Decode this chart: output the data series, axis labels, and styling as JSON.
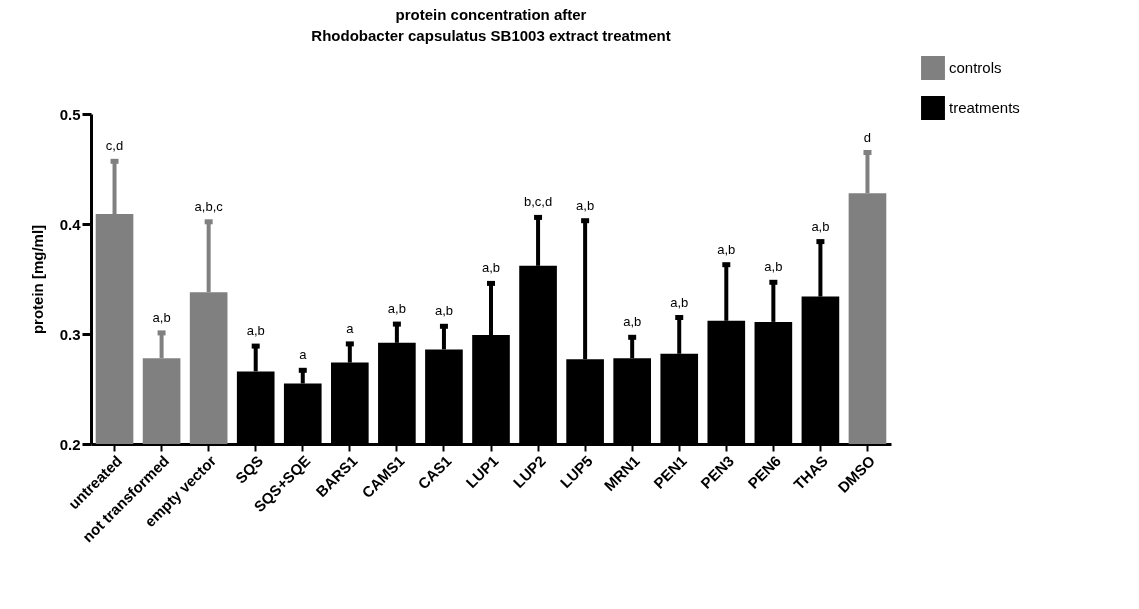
{
  "chart_data": {
    "type": "bar",
    "title": "protein concentration after",
    "subtitle": "Rhodobacter capsulatus SB1003 extract treatment",
    "ylabel": "protein [mg/ml]",
    "categories": [
      "untreated",
      "not transformed",
      "empty vector",
      "SQS",
      "SQS+SQE",
      "BARS1",
      "CAMS1",
      "CAS1",
      "LUP1",
      "LUP2",
      "LUP5",
      "MRN1",
      "PEN1",
      "PEN3",
      "PEN6",
      "THAS",
      "DMSO"
    ],
    "series": [
      {
        "name": "controls",
        "color": "#808080",
        "values": [
          0.409,
          0.278,
          0.338,
          null,
          null,
          null,
          null,
          null,
          null,
          null,
          null,
          null,
          null,
          null,
          null,
          null,
          0.428
        ],
        "errors": [
          [
            0.409,
            0.457
          ],
          [
            0.278,
            0.301
          ],
          [
            0.338,
            0.402
          ],
          null,
          null,
          null,
          null,
          null,
          null,
          null,
          null,
          null,
          null,
          null,
          null,
          null,
          [
            0.428,
            0.465
          ]
        ]
      },
      {
        "name": "treatments",
        "color": "#000000",
        "values": [
          null,
          null,
          null,
          0.266,
          0.255,
          0.274,
          0.292,
          0.286,
          0.299,
          0.362,
          0.277,
          0.278,
          0.282,
          0.312,
          0.311,
          0.334,
          null
        ],
        "errors": [
          null,
          null,
          null,
          [
            0.266,
            0.289
          ],
          [
            0.255,
            0.267
          ],
          [
            0.274,
            0.291
          ],
          [
            0.292,
            0.309
          ],
          [
            0.286,
            0.307
          ],
          [
            0.299,
            0.346
          ],
          [
            0.362,
            0.406
          ],
          [
            0.277,
            0.403
          ],
          [
            0.278,
            0.297
          ],
          [
            0.282,
            0.315
          ],
          [
            0.312,
            0.363
          ],
          [
            0.311,
            0.347
          ],
          [
            0.334,
            0.384
          ],
          null
        ]
      }
    ],
    "annotations": [
      "c,d",
      "a,b",
      "a,b,c",
      "a,b",
      "a",
      "a",
      "a,b",
      "a,b",
      "a,b",
      "b,c,d",
      "a,b",
      "a,b",
      "a,b",
      "a,b",
      "a,b",
      "a,b",
      "d"
    ],
    "ylim": [
      0.2,
      0.5
    ],
    "yticks": [
      0.2,
      0.3,
      0.4,
      0.5
    ],
    "grid": false,
    "legend": "top right"
  }
}
